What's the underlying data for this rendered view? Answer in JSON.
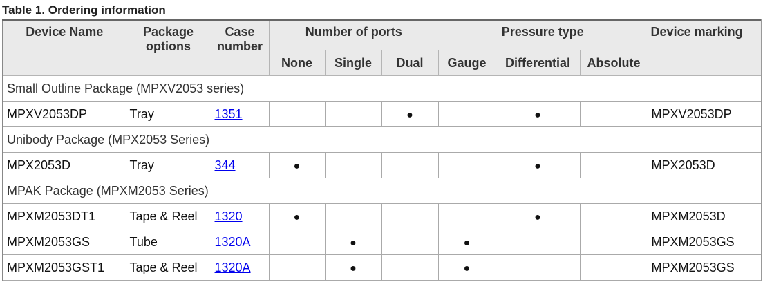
{
  "caption": "Table 1.  Ordering information",
  "headers": {
    "device_name": "Device Name",
    "package_options": "Package options",
    "case_number": "Case number",
    "number_of_ports": "Number of ports",
    "pressure_type": "Pressure type",
    "device_marking": "Device marking",
    "ports": [
      "None",
      "Single",
      "Dual"
    ],
    "pressure": [
      "Gauge",
      "Differential",
      "Absolute"
    ]
  },
  "bullet": "●",
  "groups": [
    {
      "title": "Small Outline Package (MPXV2053 series)",
      "rows": [
        {
          "device": "MPXV2053DP",
          "package": "Tray",
          "case": "1351",
          "ports": "Dual",
          "pressure": "Differential",
          "marking": "MPXV2053DP"
        }
      ]
    },
    {
      "title": "Unibody Package (MPX2053 Series)",
      "rows": [
        {
          "device": "MPX2053D",
          "package": "Tray",
          "case": "344",
          "ports": "None",
          "pressure": "Differential",
          "marking": "MPX2053D"
        }
      ]
    },
    {
      "title": "MPAK Package (MPXM2053 Series)",
      "rows": [
        {
          "device": "MPXM2053DT1",
          "package": "Tape & Reel",
          "case": "1320",
          "ports": "None",
          "pressure": "Differential",
          "marking": "MPXM2053D"
        },
        {
          "device": "MPXM2053GS",
          "package": "Tube",
          "case": "1320A",
          "ports": "Single",
          "pressure": "Gauge",
          "marking": "MPXM2053GS"
        },
        {
          "device": "MPXM2053GST1",
          "package": "Tape & Reel",
          "case": "1320A",
          "ports": "Single",
          "pressure": "Gauge",
          "marking": "MPXM2053GS"
        }
      ]
    }
  ]
}
